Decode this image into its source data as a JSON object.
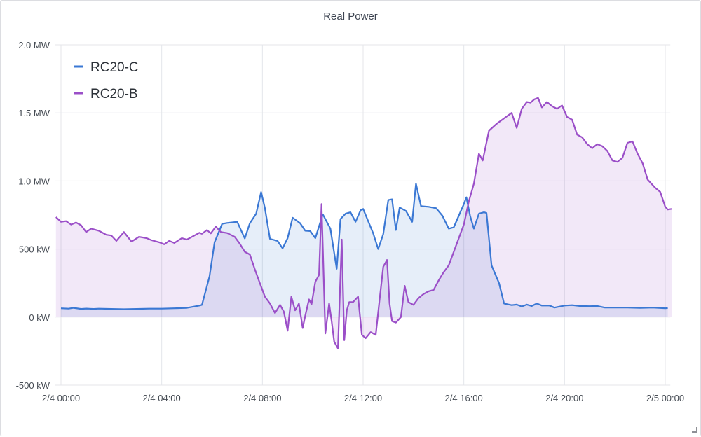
{
  "panel": {
    "title": "Real Power"
  },
  "colors": {
    "rc20c": "#3b78d4",
    "rc20b": "#9b4fc8",
    "grid": "#e4e6ea",
    "text": "#464c54"
  },
  "chart_data": {
    "type": "line",
    "title": "Real Power",
    "xlabel": "",
    "ylabel": "",
    "x_unit": "hours from 2/4 00:00",
    "x_ticks": [
      {
        "value": 0,
        "label": "2/4 00:00"
      },
      {
        "value": 4,
        "label": "2/4 04:00"
      },
      {
        "value": 8,
        "label": "2/4 08:00"
      },
      {
        "value": 12,
        "label": "2/4 12:00"
      },
      {
        "value": 16,
        "label": "2/4 16:00"
      },
      {
        "value": 20,
        "label": "2/4 20:00"
      },
      {
        "value": 24,
        "label": "2/5 00:00"
      }
    ],
    "y_ticks": [
      {
        "value": -500,
        "label": "-500 kW"
      },
      {
        "value": 0,
        "label": "0 kW"
      },
      {
        "value": 500,
        "label": "500 kW"
      },
      {
        "value": 1000,
        "label": "1.0 MW"
      },
      {
        "value": 1500,
        "label": "1.5 MW"
      },
      {
        "value": 2000,
        "label": "2.0 MW"
      }
    ],
    "xlim": [
      -0.25,
      24.2
    ],
    "ylim": [
      -500,
      2000
    ],
    "y_unit": "kW",
    "grid": true,
    "legend_position": "top-left",
    "fill_opacity": 0.13,
    "series": [
      {
        "name": "RC20-C",
        "color": "#3b78d4",
        "fill": true,
        "points": [
          [
            0.0,
            65
          ],
          [
            0.3,
            62
          ],
          [
            0.5,
            68
          ],
          [
            0.8,
            60
          ],
          [
            1.0,
            63
          ],
          [
            1.3,
            60
          ],
          [
            1.5,
            62
          ],
          [
            2.0,
            60
          ],
          [
            2.5,
            58
          ],
          [
            3.0,
            60
          ],
          [
            3.5,
            62
          ],
          [
            4.0,
            62
          ],
          [
            4.5,
            65
          ],
          [
            5.0,
            68
          ],
          [
            5.5,
            85
          ],
          [
            5.6,
            90
          ],
          [
            5.9,
            300
          ],
          [
            6.1,
            550
          ],
          [
            6.4,
            685
          ],
          [
            6.6,
            692
          ],
          [
            7.0,
            700
          ],
          [
            7.3,
            578
          ],
          [
            7.5,
            690
          ],
          [
            7.75,
            760
          ],
          [
            7.95,
            918
          ],
          [
            8.1,
            800
          ],
          [
            8.3,
            575
          ],
          [
            8.6,
            560
          ],
          [
            8.8,
            505
          ],
          [
            9.0,
            580
          ],
          [
            9.2,
            730
          ],
          [
            9.5,
            690
          ],
          [
            9.7,
            635
          ],
          [
            9.9,
            632
          ],
          [
            10.1,
            580
          ],
          [
            10.4,
            755
          ],
          [
            10.7,
            650
          ],
          [
            10.95,
            355
          ],
          [
            11.1,
            720
          ],
          [
            11.3,
            760
          ],
          [
            11.5,
            770
          ],
          [
            11.7,
            700
          ],
          [
            11.9,
            785
          ],
          [
            12.0,
            795
          ],
          [
            12.2,
            705
          ],
          [
            12.4,
            615
          ],
          [
            12.6,
            500
          ],
          [
            12.8,
            610
          ],
          [
            13.0,
            860
          ],
          [
            13.15,
            865
          ],
          [
            13.3,
            640
          ],
          [
            13.45,
            805
          ],
          [
            13.7,
            780
          ],
          [
            13.95,
            700
          ],
          [
            14.1,
            980
          ],
          [
            14.3,
            815
          ],
          [
            14.6,
            810
          ],
          [
            14.9,
            800
          ],
          [
            15.15,
            745
          ],
          [
            15.4,
            650
          ],
          [
            15.6,
            660
          ],
          [
            15.8,
            745
          ],
          [
            16.0,
            830
          ],
          [
            16.1,
            880
          ],
          [
            16.25,
            745
          ],
          [
            16.4,
            650
          ],
          [
            16.6,
            760
          ],
          [
            16.8,
            770
          ],
          [
            16.9,
            765
          ],
          [
            17.1,
            380
          ],
          [
            17.4,
            250
          ],
          [
            17.6,
            100
          ],
          [
            17.9,
            88
          ],
          [
            18.1,
            92
          ],
          [
            18.3,
            78
          ],
          [
            18.5,
            92
          ],
          [
            18.7,
            82
          ],
          [
            18.9,
            100
          ],
          [
            19.1,
            85
          ],
          [
            19.4,
            85
          ],
          [
            19.6,
            70
          ],
          [
            20.0,
            85
          ],
          [
            20.3,
            88
          ],
          [
            20.6,
            82
          ],
          [
            21.0,
            80
          ],
          [
            21.3,
            82
          ],
          [
            21.6,
            70
          ],
          [
            22.0,
            70
          ],
          [
            22.5,
            70
          ],
          [
            23.0,
            68
          ],
          [
            23.5,
            70
          ],
          [
            24.0,
            65
          ],
          [
            24.1,
            67
          ]
        ]
      },
      {
        "name": "RC20-B",
        "color": "#9b4fc8",
        "fill": true,
        "points": [
          [
            -0.2,
            735
          ],
          [
            0.0,
            700
          ],
          [
            0.2,
            705
          ],
          [
            0.4,
            680
          ],
          [
            0.6,
            695
          ],
          [
            0.8,
            675
          ],
          [
            1.0,
            625
          ],
          [
            1.2,
            650
          ],
          [
            1.5,
            635
          ],
          [
            1.8,
            605
          ],
          [
            2.0,
            600
          ],
          [
            2.2,
            560
          ],
          [
            2.5,
            625
          ],
          [
            2.8,
            555
          ],
          [
            3.1,
            590
          ],
          [
            3.4,
            580
          ],
          [
            3.6,
            565
          ],
          [
            3.9,
            550
          ],
          [
            4.1,
            535
          ],
          [
            4.3,
            560
          ],
          [
            4.5,
            545
          ],
          [
            4.8,
            580
          ],
          [
            5.0,
            570
          ],
          [
            5.3,
            600
          ],
          [
            5.5,
            620
          ],
          [
            5.6,
            612
          ],
          [
            5.8,
            640
          ],
          [
            5.95,
            615
          ],
          [
            6.15,
            665
          ],
          [
            6.35,
            625
          ],
          [
            6.6,
            618
          ],
          [
            6.9,
            590
          ],
          [
            7.1,
            540
          ],
          [
            7.3,
            480
          ],
          [
            7.5,
            460
          ],
          [
            7.7,
            350
          ],
          [
            7.9,
            250
          ],
          [
            8.1,
            150
          ],
          [
            8.3,
            100
          ],
          [
            8.5,
            30
          ],
          [
            8.7,
            90
          ],
          [
            8.85,
            40
          ],
          [
            9.0,
            -100
          ],
          [
            9.15,
            150
          ],
          [
            9.3,
            50
          ],
          [
            9.45,
            100
          ],
          [
            9.6,
            -80
          ],
          [
            9.7,
            10
          ],
          [
            9.85,
            130
          ],
          [
            9.95,
            95
          ],
          [
            10.1,
            260
          ],
          [
            10.25,
            310
          ],
          [
            10.35,
            830
          ],
          [
            10.5,
            -120
          ],
          [
            10.65,
            100
          ],
          [
            10.75,
            -30
          ],
          [
            10.85,
            -180
          ],
          [
            11.0,
            -230
          ],
          [
            11.15,
            570
          ],
          [
            11.25,
            -170
          ],
          [
            11.35,
            50
          ],
          [
            11.45,
            110
          ],
          [
            11.6,
            110
          ],
          [
            11.8,
            150
          ],
          [
            11.95,
            -130
          ],
          [
            12.1,
            -155
          ],
          [
            12.3,
            -110
          ],
          [
            12.5,
            -130
          ],
          [
            12.65,
            120
          ],
          [
            12.8,
            370
          ],
          [
            12.95,
            420
          ],
          [
            13.05,
            100
          ],
          [
            13.15,
            -30
          ],
          [
            13.3,
            -40
          ],
          [
            13.5,
            0
          ],
          [
            13.65,
            230
          ],
          [
            13.8,
            110
          ],
          [
            14.0,
            90
          ],
          [
            14.2,
            140
          ],
          [
            14.4,
            170
          ],
          [
            14.6,
            190
          ],
          [
            14.8,
            200
          ],
          [
            15.0,
            270
          ],
          [
            15.2,
            330
          ],
          [
            15.4,
            380
          ],
          [
            15.6,
            480
          ],
          [
            15.8,
            580
          ],
          [
            16.0,
            680
          ],
          [
            16.2,
            850
          ],
          [
            16.4,
            980
          ],
          [
            16.6,
            1200
          ],
          [
            16.75,
            1150
          ],
          [
            17.0,
            1370
          ],
          [
            17.3,
            1420
          ],
          [
            17.6,
            1460
          ],
          [
            17.9,
            1500
          ],
          [
            18.1,
            1390
          ],
          [
            18.3,
            1530
          ],
          [
            18.5,
            1580
          ],
          [
            18.65,
            1575
          ],
          [
            18.8,
            1600
          ],
          [
            18.95,
            1610
          ],
          [
            19.1,
            1540
          ],
          [
            19.3,
            1580
          ],
          [
            19.5,
            1550
          ],
          [
            19.7,
            1530
          ],
          [
            19.9,
            1555
          ],
          [
            20.1,
            1470
          ],
          [
            20.3,
            1450
          ],
          [
            20.5,
            1340
          ],
          [
            20.7,
            1320
          ],
          [
            20.9,
            1270
          ],
          [
            21.1,
            1240
          ],
          [
            21.3,
            1270
          ],
          [
            21.5,
            1255
          ],
          [
            21.7,
            1220
          ],
          [
            21.9,
            1150
          ],
          [
            22.1,
            1140
          ],
          [
            22.3,
            1170
          ],
          [
            22.5,
            1280
          ],
          [
            22.7,
            1290
          ],
          [
            22.9,
            1200
          ],
          [
            23.1,
            1130
          ],
          [
            23.3,
            1010
          ],
          [
            23.6,
            950
          ],
          [
            23.8,
            920
          ],
          [
            24.0,
            810
          ],
          [
            24.1,
            790
          ],
          [
            24.25,
            795
          ]
        ]
      }
    ]
  }
}
